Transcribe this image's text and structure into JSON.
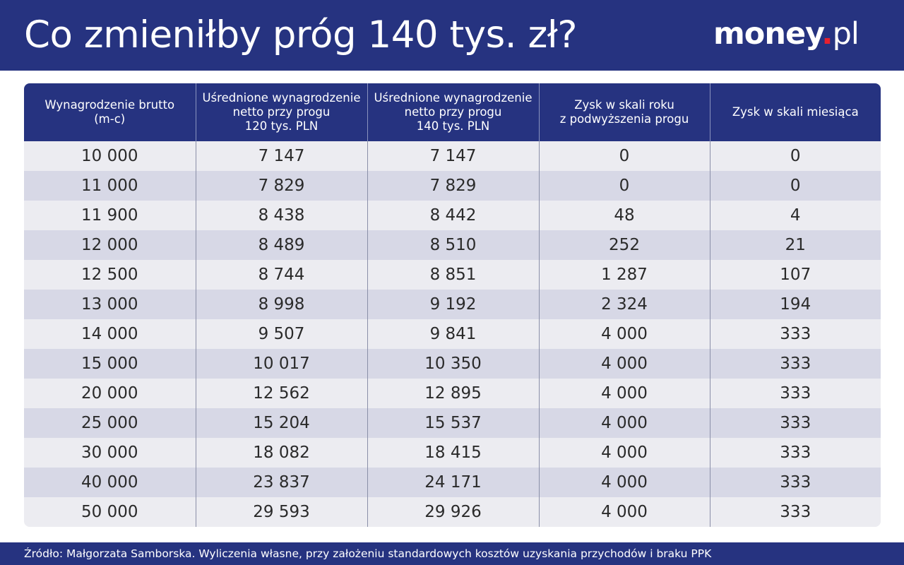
{
  "header": {
    "title": "Co zmieniłby próg 140 tys. zł?",
    "logo": {
      "name": "money",
      "dot": ".",
      "tld": "pl",
      "accent_color": "#e8202e"
    },
    "background_color": "#263380"
  },
  "table": {
    "columns": [
      "Wynagrodzenie brutto\n(m-c)",
      "Uśrednione wynagrodzenie\nnetto przy progu\n120 tys. PLN",
      "Uśrednione wynagrodzenie\nnetto przy progu\n140 tys. PLN",
      "Zysk w skali roku\nz podwyższenia progu",
      "Zysk w skali miesiąca"
    ],
    "rows": [
      [
        "10 000",
        "7 147",
        "7 147",
        "0",
        "0"
      ],
      [
        "11 000",
        "7 829",
        "7 829",
        "0",
        "0"
      ],
      [
        "11 900",
        "8 438",
        "8 442",
        "48",
        "4"
      ],
      [
        "12 000",
        "8 489",
        "8 510",
        "252",
        "21"
      ],
      [
        "12 500",
        "8 744",
        "8 851",
        "1 287",
        "107"
      ],
      [
        "13 000",
        "8 998",
        "9 192",
        "2 324",
        "194"
      ],
      [
        "14 000",
        "9 507",
        "9 841",
        "4 000",
        "333"
      ],
      [
        "15 000",
        "10 017",
        "10 350",
        "4 000",
        "333"
      ],
      [
        "20 000",
        "12 562",
        "12 895",
        "4 000",
        "333"
      ],
      [
        "25 000",
        "15 204",
        "15 537",
        "4 000",
        "333"
      ],
      [
        "30 000",
        "18 082",
        "18 415",
        "4 000",
        "333"
      ],
      [
        "40 000",
        "23 837",
        "24 171",
        "4 000",
        "333"
      ],
      [
        "50 000",
        "29 593",
        "29 926",
        "4 000",
        "333"
      ]
    ],
    "row_colors": [
      "#ececf1",
      "#d7d8e6"
    ]
  },
  "footer": {
    "source": "Źródło: Małgorzata Samborska. Wyliczenia własne, przy założeniu standardowych kosztów uzyskania przychodów i braku PPK"
  }
}
